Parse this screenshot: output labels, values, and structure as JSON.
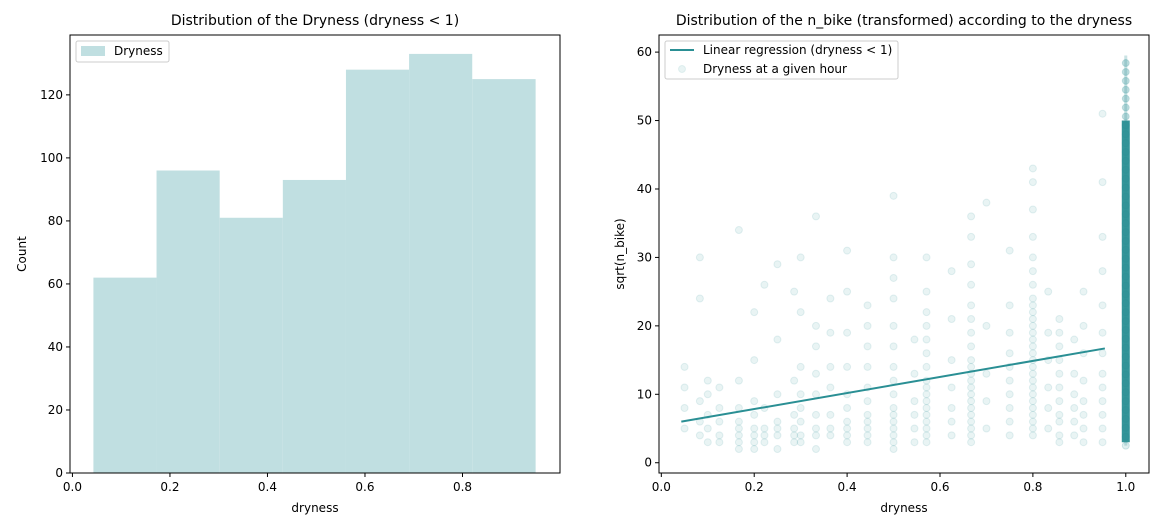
{
  "chart_data": [
    {
      "type": "bar",
      "title": "Distribution of the Dryness (dryness < 1)",
      "xlabel": "dryness",
      "ylabel": "Count",
      "xlim": [
        -0.005,
        1.0
      ],
      "ylim": [
        0,
        139
      ],
      "xticks": [
        "0.0",
        "0.2",
        "0.4",
        "0.6",
        "0.8"
      ],
      "yticks": [
        "0",
        "20",
        "40",
        "60",
        "80",
        "100",
        "120"
      ],
      "bin_edges": [
        0.043,
        0.1725,
        0.302,
        0.4315,
        0.561,
        0.6905,
        0.82,
        0.95
      ],
      "values": [
        62,
        96,
        81,
        93,
        128,
        133,
        125
      ],
      "color": "#c0dfe1",
      "legend": {
        "loc": "upper-left",
        "entries": [
          "Dryness"
        ]
      },
      "grid": false
    },
    {
      "type": "scatter",
      "title": "Distribution of the n_bike (transformed) according to the dryness",
      "xlabel": "dryness",
      "ylabel": "sqrt(n_bike)",
      "xlim": [
        -0.005,
        1.05
      ],
      "ylim": [
        -1.5,
        62.5
      ],
      "xticks": [
        "0.0",
        "0.2",
        "0.4",
        "0.6",
        "0.8",
        "1.0"
      ],
      "yticks": [
        "0",
        "10",
        "20",
        "30",
        "40",
        "50",
        "60"
      ],
      "color": "#2a8f94",
      "grid": false,
      "legend": {
        "loc": "upper-left",
        "entries": [
          "Linear regression (dryness < 1)",
          "Dryness at a given hour"
        ]
      },
      "series": [
        {
          "name": "Linear regression (dryness < 1)",
          "kind": "line",
          "x": [
            0.043,
            0.955
          ],
          "y": [
            6.0,
            16.7
          ]
        },
        {
          "name": "Dryness at a given hour",
          "kind": "points",
          "columns": [
            {
              "x": 0.05,
              "y": [
                5,
                8,
                11,
                14
              ]
            },
            {
              "x": 0.083,
              "y": [
                4,
                6,
                9,
                24,
                30
              ]
            },
            {
              "x": 0.1,
              "y": [
                3,
                5,
                7,
                10,
                12
              ]
            },
            {
              "x": 0.125,
              "y": [
                3,
                4,
                6,
                8,
                11
              ]
            },
            {
              "x": 0.167,
              "y": [
                2,
                3,
                4,
                5,
                6,
                8,
                12,
                34
              ]
            },
            {
              "x": 0.2,
              "y": [
                2,
                3,
                4,
                5,
                7,
                9,
                15,
                22
              ]
            },
            {
              "x": 0.222,
              "y": [
                3,
                4,
                5,
                8,
                26
              ]
            },
            {
              "x": 0.25,
              "y": [
                2,
                4,
                5,
                6,
                10,
                18,
                29
              ]
            },
            {
              "x": 0.286,
              "y": [
                3,
                4,
                5,
                7,
                12,
                25
              ]
            },
            {
              "x": 0.3,
              "y": [
                3,
                4,
                6,
                8,
                10,
                14,
                22,
                30
              ]
            },
            {
              "x": 0.333,
              "y": [
                2,
                4,
                5,
                7,
                10,
                13,
                17,
                20,
                36
              ]
            },
            {
              "x": 0.364,
              "y": [
                4,
                5,
                7,
                11,
                14,
                19,
                24
              ]
            },
            {
              "x": 0.4,
              "y": [
                3,
                4,
                5,
                6,
                8,
                10,
                14,
                19,
                25,
                31
              ]
            },
            {
              "x": 0.444,
              "y": [
                3,
                4,
                5,
                6,
                7,
                9,
                11,
                14,
                17,
                20,
                23
              ]
            },
            {
              "x": 0.5,
              "y": [
                2,
                3,
                4,
                5,
                6,
                7,
                8,
                10,
                12,
                14,
                17,
                20,
                24,
                27,
                30,
                39
              ]
            },
            {
              "x": 0.545,
              "y": [
                3,
                5,
                7,
                9,
                13,
                18
              ]
            },
            {
              "x": 0.571,
              "y": [
                3,
                4,
                5,
                6,
                7,
                8,
                9,
                10,
                11,
                12,
                14,
                16,
                18,
                20,
                22,
                25,
                30
              ]
            },
            {
              "x": 0.625,
              "y": [
                4,
                6,
                8,
                11,
                15,
                21,
                28
              ]
            },
            {
              "x": 0.667,
              "y": [
                3,
                4,
                5,
                6,
                7,
                8,
                9,
                10,
                11,
                12,
                13,
                14,
                15,
                17,
                19,
                21,
                23,
                26,
                29,
                33,
                36
              ]
            },
            {
              "x": 0.7,
              "y": [
                5,
                9,
                13,
                20,
                38
              ]
            },
            {
              "x": 0.75,
              "y": [
                4,
                6,
                8,
                10,
                12,
                14,
                16,
                19,
                23,
                31
              ]
            },
            {
              "x": 0.8,
              "y": [
                4,
                5,
                6,
                7,
                8,
                9,
                10,
                11,
                12,
                13,
                14,
                15,
                16,
                17,
                18,
                19,
                20,
                21,
                22,
                23,
                24,
                26,
                28,
                30,
                33,
                37,
                41,
                43
              ]
            },
            {
              "x": 0.833,
              "y": [
                5,
                8,
                11,
                15,
                19,
                25
              ]
            },
            {
              "x": 0.857,
              "y": [
                3,
                4,
                6,
                7,
                9,
                11,
                13,
                15,
                17,
                19,
                21
              ]
            },
            {
              "x": 0.889,
              "y": [
                4,
                6,
                8,
                10,
                13,
                18
              ]
            },
            {
              "x": 0.909,
              "y": [
                3,
                5,
                7,
                9,
                12,
                16,
                20,
                25
              ]
            },
            {
              "x": 0.95,
              "y": [
                3,
                5,
                7,
                9,
                11,
                13,
                16,
                19,
                23,
                28,
                33,
                41,
                51
              ]
            }
          ],
          "dense_column": {
            "x": 1.0,
            "y_range": [
              2.5,
              59.5
            ]
          }
        }
      ]
    }
  ]
}
